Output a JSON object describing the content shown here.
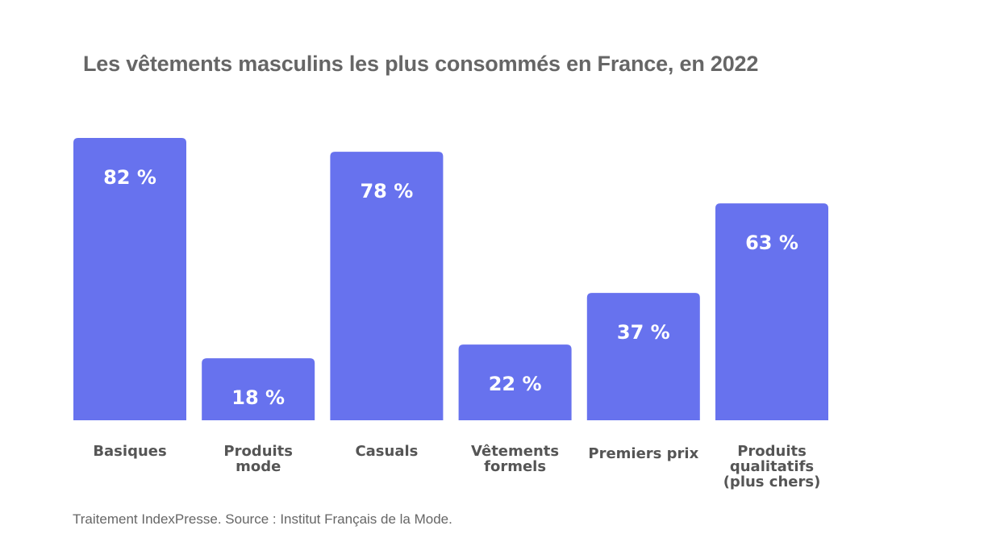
{
  "chart_data": {
    "type": "bar",
    "title": "Les vêtements masculins les plus consommés en France, en 2022",
    "categories": [
      "Basiques",
      "Produits mode",
      "Casuals",
      "Vêtements formels",
      "Premiers prix",
      "Produits qualitatifs (plus chers)"
    ],
    "category_lines": [
      [
        "Basiques"
      ],
      [
        "Produits",
        "mode"
      ],
      [
        "Casuals"
      ],
      [
        "Vêtements",
        "formels"
      ],
      [
        "Premiers prix"
      ],
      [
        "Produits",
        "qualitatifs",
        "(plus chers)"
      ]
    ],
    "values": [
      82,
      18,
      78,
      22,
      37,
      63
    ],
    "value_labels": [
      "82 %",
      "18 %",
      "78 %",
      "22 %",
      "37 %",
      "63 %"
    ],
    "unit": "%",
    "ylim": [
      0,
      82
    ],
    "xlabel": "",
    "ylabel": "",
    "grid": false,
    "bar_color": "#6772ee",
    "source": "Traitement IndexPresse. Source : Institut Français de la Mode."
  }
}
